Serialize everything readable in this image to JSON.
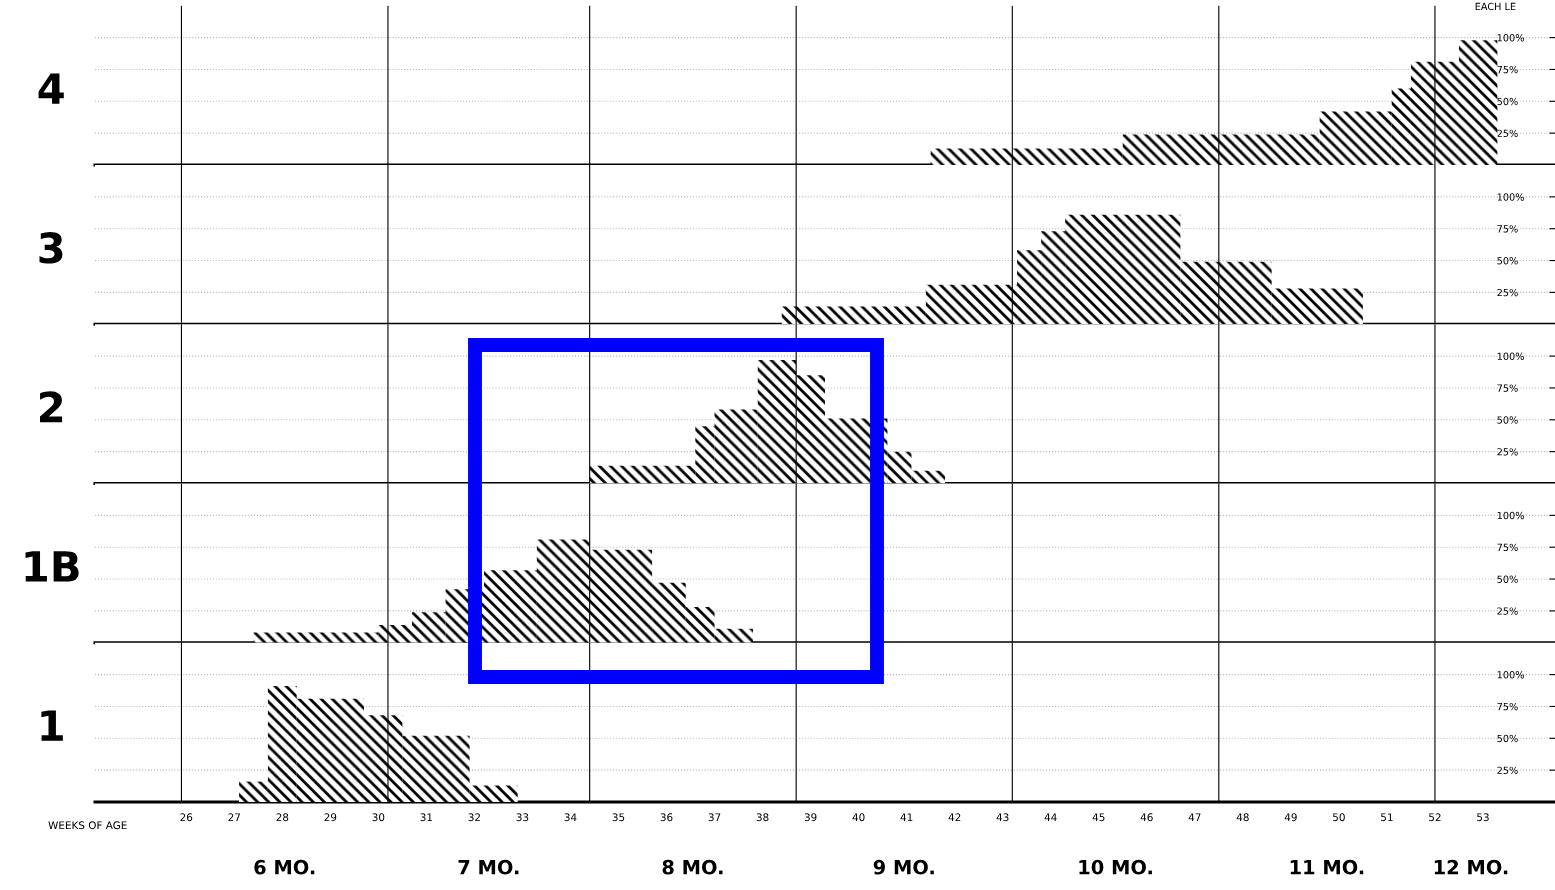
{
  "chart_data": [
    {
      "type": "histogram",
      "ylabel": "4",
      "annotations": [
        "EACH LE"
      ],
      "color": "#000000",
      "bins": [
        41.5,
        45.5,
        49.6,
        51.1,
        51.5,
        52.5,
        53.3
      ],
      "values": [
        13,
        24,
        42,
        60,
        81,
        98
      ],
      "xlim": [
        24.1,
        54.5
      ],
      "ylim": [
        0,
        125
      ],
      "yticks": [
        {
          "value": 25,
          "label": "25%"
        },
        {
          "value": 50,
          "label": "50%"
        },
        {
          "value": 75,
          "label": "75%"
        },
        {
          "value": 100,
          "label": "100%"
        }
      ],
      "grid": "y",
      "tick_labels": "y",
      "ref_lines": [
        {
          "axis": "x",
          "value": 25.9,
          "color": "#000000"
        },
        {
          "axis": "x",
          "value": 30.2,
          "color": "#000000"
        },
        {
          "axis": "x",
          "value": 34.4,
          "color": "#000000"
        },
        {
          "axis": "x",
          "value": 38.7,
          "color": "#000000"
        },
        {
          "axis": "x",
          "value": 43.2,
          "color": "#000000"
        },
        {
          "axis": "x",
          "value": 47.5,
          "color": "#000000"
        },
        {
          "axis": "x",
          "value": 52.0,
          "color": "#000000"
        }
      ]
    },
    {
      "type": "histogram",
      "ylabel": "3",
      "color": "#000000",
      "bins": [
        38.4,
        41.4,
        43.3,
        43.8,
        44.3,
        46.7,
        48.6,
        50.5
      ],
      "values": [
        14,
        31,
        58,
        73,
        86,
        49,
        28
      ],
      "xlim": [
        24.1,
        54.5
      ],
      "ylim": [
        0,
        125
      ],
      "yticks": [
        {
          "value": 25,
          "label": "25%"
        },
        {
          "value": 50,
          "label": "50%"
        },
        {
          "value": 75,
          "label": "75%"
        },
        {
          "value": 100,
          "label": "100%"
        }
      ],
      "grid": "y",
      "tick_labels": "y",
      "ref_lines": [
        {
          "axis": "x",
          "value": 25.9,
          "color": "#000000"
        },
        {
          "axis": "x",
          "value": 30.2,
          "color": "#000000"
        },
        {
          "axis": "x",
          "value": 34.4,
          "color": "#000000"
        },
        {
          "axis": "x",
          "value": 38.7,
          "color": "#000000"
        },
        {
          "axis": "x",
          "value": 43.2,
          "color": "#000000"
        },
        {
          "axis": "x",
          "value": 47.5,
          "color": "#000000"
        },
        {
          "axis": "x",
          "value": 52.0,
          "color": "#000000"
        }
      ]
    },
    {
      "type": "histogram",
      "ylabel": "2",
      "color": "#000000",
      "bins": [
        34.4,
        36.6,
        37.0,
        37.9,
        38.7,
        39.3,
        40.6,
        41.1,
        41.8
      ],
      "values": [
        14,
        45,
        58,
        97,
        85,
        51,
        25,
        10
      ],
      "xlim": [
        24.1,
        54.5
      ],
      "ylim": [
        0,
        125
      ],
      "yticks": [
        {
          "value": 25,
          "label": "25%"
        },
        {
          "value": 50,
          "label": "50%"
        },
        {
          "value": 75,
          "label": "75%"
        },
        {
          "value": 100,
          "label": "100%"
        }
      ],
      "grid": "y",
      "tick_labels": "y",
      "ref_lines": [
        {
          "axis": "x",
          "value": 25.9,
          "color": "#000000"
        },
        {
          "axis": "x",
          "value": 30.2,
          "color": "#000000"
        },
        {
          "axis": "x",
          "value": 34.4,
          "color": "#000000"
        },
        {
          "axis": "x",
          "value": 38.7,
          "color": "#000000"
        },
        {
          "axis": "x",
          "value": 43.2,
          "color": "#000000"
        },
        {
          "axis": "x",
          "value": 47.5,
          "color": "#000000"
        },
        {
          "axis": "x",
          "value": 52.0,
          "color": "#000000"
        }
      ]
    },
    {
      "type": "histogram",
      "ylabel": "1B",
      "color": "#000000",
      "bins": [
        27.4,
        30.0,
        30.7,
        31.4,
        32.2,
        33.3,
        34.4,
        35.7,
        36.4,
        37.0,
        37.8
      ],
      "values": [
        8,
        14,
        24,
        42,
        57,
        81,
        73,
        47,
        28,
        11
      ],
      "xlim": [
        24.1,
        54.5
      ],
      "ylim": [
        0,
        125
      ],
      "yticks": [
        {
          "value": 25,
          "label": "25%"
        },
        {
          "value": 50,
          "label": "50%"
        },
        {
          "value": 75,
          "label": "75%"
        },
        {
          "value": 100,
          "label": "100%"
        }
      ],
      "grid": "y",
      "tick_labels": "y",
      "ref_lines": [
        {
          "axis": "x",
          "value": 25.9,
          "color": "#000000"
        },
        {
          "axis": "x",
          "value": 30.2,
          "color": "#000000"
        },
        {
          "axis": "x",
          "value": 34.4,
          "color": "#000000"
        },
        {
          "axis": "x",
          "value": 38.7,
          "color": "#000000"
        },
        {
          "axis": "x",
          "value": 43.2,
          "color": "#000000"
        },
        {
          "axis": "x",
          "value": 47.5,
          "color": "#000000"
        },
        {
          "axis": "x",
          "value": 52.0,
          "color": "#000000"
        }
      ]
    },
    {
      "type": "histogram",
      "ylabel": "1",
      "xlabel": "WEEKS OF AGE",
      "color": "#000000",
      "bins": [
        27.1,
        27.7,
        28.3,
        29.7,
        30.5,
        31.9,
        32.9
      ],
      "values": [
        16,
        91,
        81,
        68,
        52,
        13
      ],
      "xlim": [
        24.1,
        54.5
      ],
      "xticks": [
        26,
        27,
        28,
        29,
        30,
        31,
        32,
        33,
        34,
        35,
        36,
        37,
        38,
        39,
        40,
        41,
        42,
        43,
        44,
        45,
        46,
        47,
        48,
        49,
        50,
        51,
        52,
        53
      ],
      "annotations": [
        "6 MO.",
        "7 MO.",
        "8 MO.",
        "9 MO.",
        "10 MO.",
        "11 MO.",
        "12 MO."
      ],
      "ylim": [
        0,
        125
      ],
      "yticks": [
        {
          "value": 25,
          "label": "25%"
        },
        {
          "value": 50,
          "label": "50%"
        },
        {
          "value": 75,
          "label": "75%"
        },
        {
          "value": 100,
          "label": "100%"
        }
      ],
      "grid": "y",
      "ref_lines": [
        {
          "axis": "x",
          "value": 25.9,
          "color": "#000000"
        },
        {
          "axis": "x",
          "value": 30.2,
          "color": "#000000"
        },
        {
          "axis": "x",
          "value": 34.4,
          "color": "#000000"
        },
        {
          "axis": "x",
          "value": 38.7,
          "color": "#000000"
        },
        {
          "axis": "x",
          "value": 43.2,
          "color": "#000000"
        },
        {
          "axis": "x",
          "value": 47.5,
          "color": "#000000"
        },
        {
          "axis": "x",
          "value": 52.0,
          "color": "#000000"
        }
      ]
    }
  ]
}
